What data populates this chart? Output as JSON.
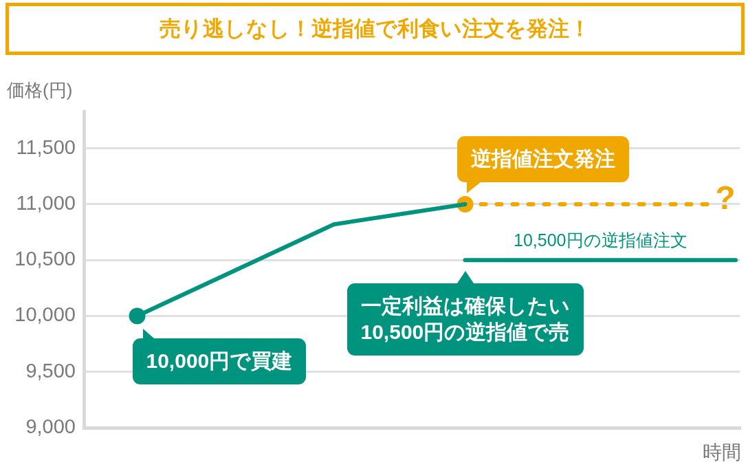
{
  "chart_data": {
    "type": "line",
    "title": "売り逃しなし！逆指値で利食い注文を発注！",
    "ylabel": "価格(円)",
    "xlabel": "時間",
    "categories": [
      null,
      null,
      null,
      null,
      null,
      null,
      null,
      null,
      null,
      null,
      null,
      null,
      null,
      null,
      null,
      null,
      null,
      null,
      null,
      null,
      null,
      null,
      null,
      null,
      null,
      null,
      null,
      null,
      null,
      null,
      null,
      null,
      null,
      null,
      null,
      null,
      null,
      null,
      null,
      null,
      null,
      null,
      null,
      null,
      null,
      null,
      null,
      null,
      null,
      null,
      null,
      null,
      null,
      null,
      null,
      null,
      null,
      null,
      null,
      null,
      null,
      null,
      null,
      null,
      null,
      null,
      null,
      null,
      null,
      null,
      null,
      null,
      null,
      null,
      null,
      null,
      null,
      null,
      null,
      null
    ],
    "series": [
      {
        "color": "#00947f",
        "marker": "none",
        "values": [
          null,
          null,
          null,
          null,
          null,
          null,
          10000,
          null,
          null,
          null,
          null,
          null,
          null,
          null,
          null,
          null,
          null,
          null,
          null,
          null,
          null,
          null,
          null,
          null,
          null,
          null,
          null,
          null,
          null,
          null,
          10820,
          null,
          null,
          null,
          null,
          null,
          null,
          null,
          null,
          null,
          null,
          null,
          null,
          null,
          null,
          null,
          11000,
          null,
          null,
          null,
          null,
          null,
          null,
          null,
          null,
          null,
          null,
          null,
          null,
          null,
          null,
          null,
          null,
          null,
          null,
          null,
          null,
          null,
          null,
          null,
          null,
          null,
          null,
          null,
          null,
          null,
          null,
          null,
          null,
          null
        ]
      },
      {
        "type": "scatter",
        "color": "#00947f",
        "marker": "circle",
        "values": [
          null,
          null,
          null,
          null,
          null,
          null,
          10000,
          null,
          null,
          null,
          null,
          null,
          null,
          null,
          null,
          null,
          null,
          null,
          null,
          null,
          null,
          null,
          null,
          null,
          null,
          null,
          null,
          null,
          null,
          null,
          null,
          null,
          null,
          null,
          null,
          null,
          null,
          null,
          null,
          null,
          null,
          null,
          null,
          null,
          null,
          null,
          null,
          null,
          null,
          null,
          null,
          null,
          null,
          null,
          null,
          null,
          null,
          null,
          null,
          null,
          null,
          null,
          null,
          null,
          null,
          null,
          null,
          null,
          null,
          null,
          null,
          null,
          null,
          null,
          null,
          null,
          null,
          null,
          null,
          null
        ]
      },
      {
        "type": "scatter",
        "color": "#f0a800",
        "marker": "circle",
        "values": [
          null,
          null,
          null,
          null,
          null,
          null,
          null,
          null,
          null,
          null,
          null,
          null,
          null,
          null,
          null,
          null,
          null,
          null,
          null,
          null,
          null,
          null,
          null,
          null,
          null,
          null,
          null,
          null,
          null,
          null,
          null,
          null,
          null,
          null,
          null,
          null,
          null,
          null,
          null,
          null,
          null,
          null,
          null,
          null,
          null,
          null,
          11000,
          null,
          null,
          null,
          null,
          null,
          null,
          null,
          null,
          null,
          null,
          null,
          null,
          null,
          null,
          null,
          null,
          null,
          null,
          null,
          null,
          null,
          null,
          null,
          null,
          null,
          null,
          null,
          null,
          null,
          null,
          null,
          null,
          null
        ]
      },
      {
        "color": "#f0a800",
        "marker": "none",
        "line_style": "dashed",
        "values": [
          null,
          null,
          null,
          null,
          null,
          null,
          null,
          null,
          null,
          null,
          null,
          null,
          null,
          null,
          null,
          null,
          null,
          null,
          null,
          null,
          null,
          null,
          null,
          null,
          null,
          null,
          null,
          null,
          null,
          null,
          null,
          null,
          null,
          null,
          null,
          null,
          null,
          null,
          null,
          null,
          null,
          null,
          null,
          null,
          null,
          null,
          11000,
          null,
          null,
          null,
          null,
          null,
          null,
          null,
          null,
          null,
          null,
          null,
          null,
          null,
          null,
          null,
          null,
          null,
          null,
          null,
          null,
          null,
          null,
          null,
          null,
          null,
          null,
          null,
          null,
          null,
          11000,
          null,
          null,
          null
        ]
      },
      {
        "name": "10,500円の逆指値注文",
        "color": "#00947f",
        "marker": "none",
        "values": [
          null,
          null,
          null,
          null,
          null,
          null,
          null,
          null,
          null,
          null,
          null,
          null,
          null,
          null,
          null,
          null,
          null,
          null,
          null,
          null,
          null,
          null,
          null,
          null,
          null,
          null,
          null,
          null,
          null,
          null,
          null,
          null,
          null,
          null,
          null,
          null,
          null,
          null,
          null,
          null,
          null,
          null,
          null,
          null,
          null,
          null,
          10500,
          null,
          null,
          null,
          null,
          null,
          null,
          null,
          null,
          null,
          null,
          null,
          null,
          null,
          null,
          null,
          null,
          null,
          null,
          null,
          null,
          null,
          null,
          null,
          null,
          null,
          null,
          null,
          null,
          null,
          null,
          null,
          null,
          10500
        ]
      }
    ],
    "ylim": [
      9000,
      11830
    ],
    "yticks": [
      {
        "value": 9000,
        "label": "9,000"
      },
      {
        "value": 9500,
        "label": "9,500"
      },
      {
        "value": 10000,
        "label": "10,000"
      },
      {
        "value": 10500,
        "label": "10,500"
      },
      {
        "value": 11000,
        "label": "11,000"
      },
      {
        "value": 11500,
        "label": "11,500"
      }
    ],
    "grid": "y",
    "annotations": [
      "逆指値注文発注",
      "?",
      "一定利益は確保したい\n10,500円の逆指値で売",
      "10,000円で買建"
    ]
  }
}
